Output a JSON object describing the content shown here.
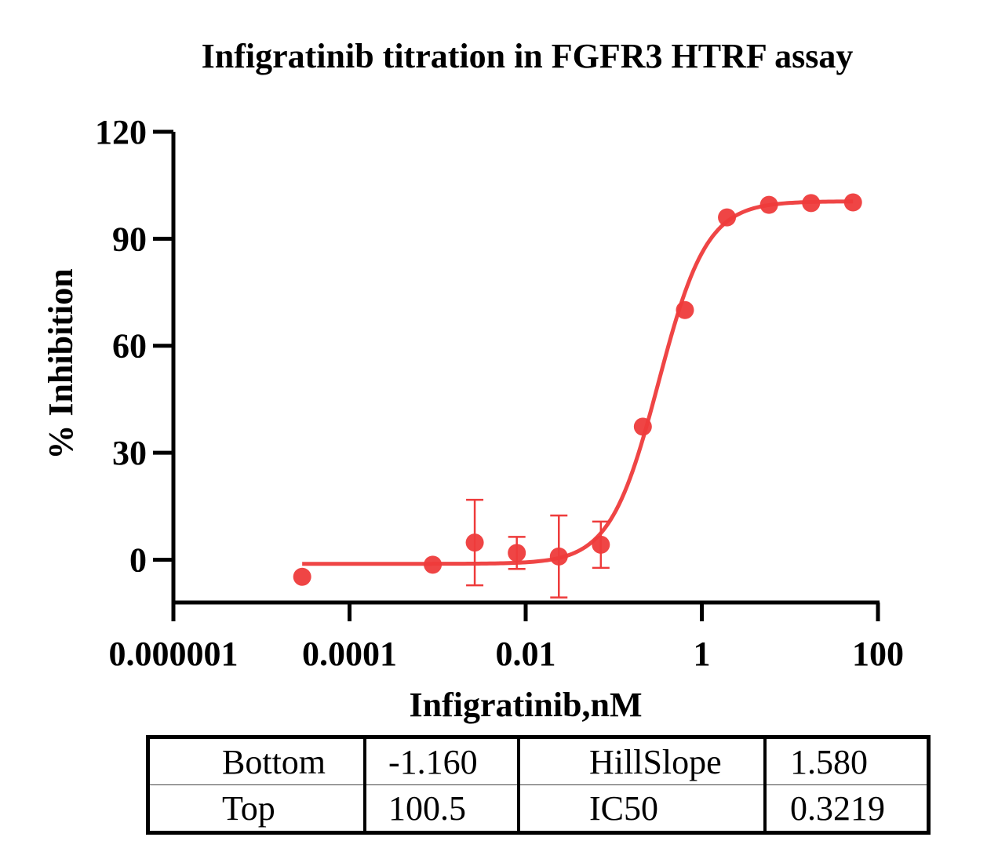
{
  "chart_data": {
    "type": "scatter",
    "title": "Infigratinib titration in FGFR3 HTRF assay",
    "xlabel": "Infigratinib,nM",
    "ylabel": "% Inhibition",
    "xscale": "log",
    "xlim": [
      1e-06,
      100
    ],
    "ylim": [
      -12,
      120
    ],
    "x_ticks": [
      "0.000001",
      "0.0001",
      "0.01",
      "1",
      "100"
    ],
    "y_ticks": [
      "0",
      "30",
      "60",
      "90",
      "120"
    ],
    "color": "#ee3b3b",
    "points": [
      {
        "x": 2.9e-05,
        "y": -4.8,
        "err": null
      },
      {
        "x": 0.000881,
        "y": -1.4,
        "err": null
      },
      {
        "x": 0.00264,
        "y": 4.8,
        "err": 12.0
      },
      {
        "x": 0.00793,
        "y": 1.9,
        "err": 4.5
      },
      {
        "x": 0.0238,
        "y": 0.9,
        "err": 11.5
      },
      {
        "x": 0.0714,
        "y": 4.2,
        "err": 6.5
      },
      {
        "x": 0.214,
        "y": 37.3,
        "err": null
      },
      {
        "x": 0.643,
        "y": 70.0,
        "err": null
      },
      {
        "x": 1.93,
        "y": 96.0,
        "err": null
      },
      {
        "x": 5.79,
        "y": 99.5,
        "err": null
      },
      {
        "x": 17.4,
        "y": 100.0,
        "err": null
      },
      {
        "x": 52.1,
        "y": 100.2,
        "err": null
      }
    ],
    "fit": {
      "model": "four-parameter logistic",
      "bottom": -1.16,
      "top": 100.5,
      "hillslope": 1.58,
      "ic50": 0.3219
    }
  },
  "params_table": {
    "rows": [
      [
        "Bottom",
        "-1.160",
        "HillSlope",
        "1.580"
      ],
      [
        "Top",
        "100.5",
        "IC50",
        "0.3219"
      ]
    ]
  }
}
